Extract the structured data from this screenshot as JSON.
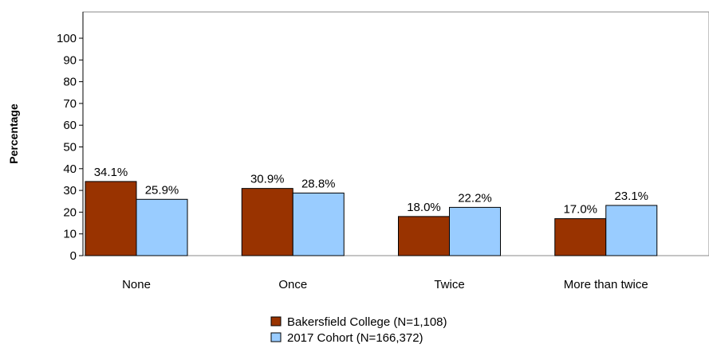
{
  "chart_data": {
    "type": "bar",
    "ylabel": "Percentage",
    "xlabel": "",
    "ylim": [
      0,
      100
    ],
    "yticks": [
      0,
      10,
      20,
      30,
      40,
      50,
      60,
      70,
      80,
      90,
      100
    ],
    "categories": [
      "None",
      "Once",
      "Twice",
      "More than twice"
    ],
    "series": [
      {
        "name": "Bakersfield College (N=1,108)",
        "values": [
          34.1,
          30.9,
          18.0,
          17.0
        ],
        "labels": [
          "34.1%",
          "30.9%",
          "18.0%",
          "17.0%"
        ],
        "color": "#993300"
      },
      {
        "name": "2017 Cohort (N=166,372)",
        "values": [
          25.9,
          28.8,
          22.2,
          23.1
        ],
        "labels": [
          "25.9%",
          "28.8%",
          "22.2%",
          "23.1%"
        ],
        "color": "#99CCFF"
      }
    ],
    "grid": false,
    "legend_position": "bottom"
  }
}
